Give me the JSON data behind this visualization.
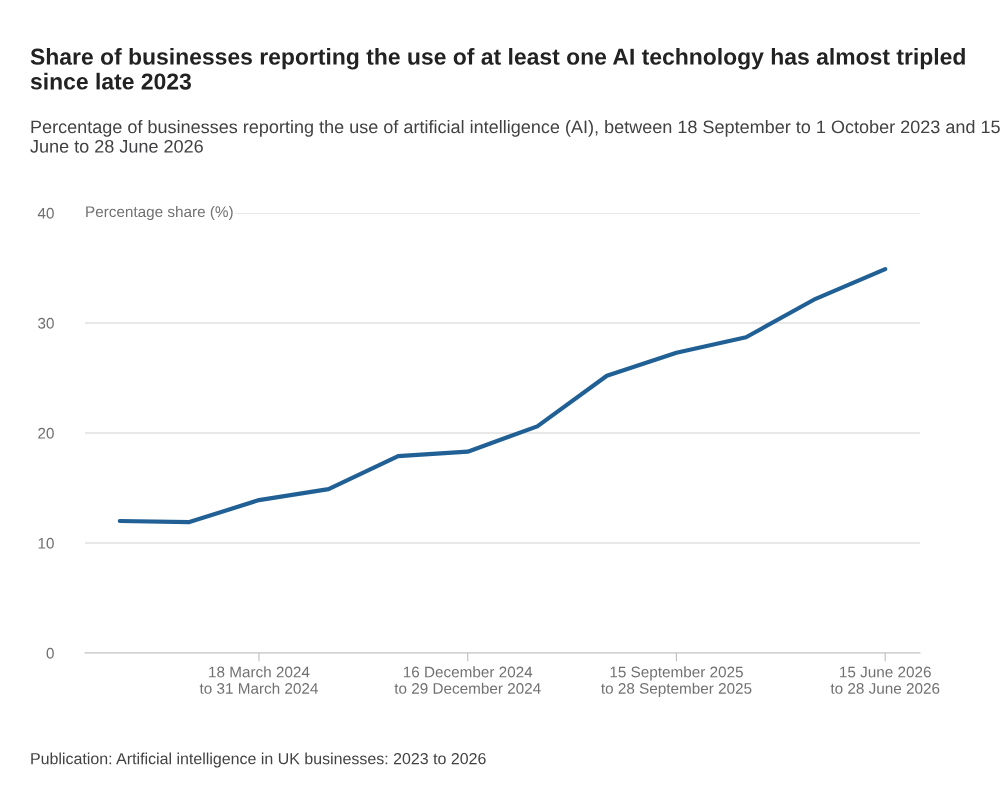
{
  "chart_data": {
    "type": "line",
    "title": "Share of businesses reporting the use of at least one AI technology has almost tripled since late 2023",
    "subtitle": "Percentage of businesses reporting the use of artificial intelligence (AI), between 18 September to 1 October 2023 and 15 June to 28 June 2026",
    "ylabel": "Percentage share (%)",
    "categories": [
      null,
      null,
      "18 March 2024\nto 31 March 2024",
      null,
      null,
      "16 December 2024\nto 29 December 2024",
      null,
      null,
      "15 September 2025\nto 28 September 2025",
      null,
      null,
      "15 June 2026\nto 28 June 2026"
    ],
    "series": [
      {
        "color": "#206095",
        "values": [
          12.0,
          11.9,
          13.9,
          14.9,
          17.9,
          18.3,
          20.6,
          25.2,
          27.3,
          28.7,
          32.2,
          34.9
        ]
      }
    ],
    "ylim": [
      0,
      40
    ],
    "yticks": [
      0,
      10,
      20,
      30,
      40
    ],
    "grid": "y",
    "legend": false,
    "marker": "none",
    "line_style": "solid",
    "annotations": [
      "Publication: Artificial intelligence in UK businesses: 2023 to 2026"
    ]
  }
}
